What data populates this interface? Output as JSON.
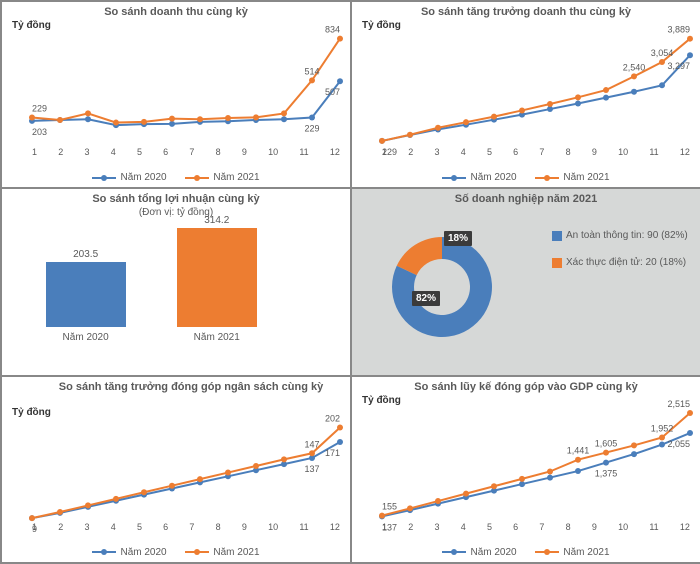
{
  "colors": {
    "blue": "#4a7ebb",
    "orange": "#ed7d31",
    "text": "#595959",
    "callout_bg": "#3b3b3b",
    "donut_bg": "#d6d8d7"
  },
  "charts": {
    "rev": {
      "title": "So sánh doanh thu cùng kỳ",
      "ylabel": "Tỷ đồng",
      "type": "line",
      "x": [
        1,
        2,
        3,
        4,
        5,
        6,
        7,
        8,
        9,
        10,
        11,
        12
      ],
      "series": [
        {
          "name": "Năm 2020",
          "color": "#4a7ebb",
          "y": [
            203,
            210,
            215,
            170,
            178,
            180,
            195,
            200,
            210,
            215,
            229,
            507
          ],
          "labels": {
            "0": "203",
            "10": "229",
            "11": "507"
          }
        },
        {
          "name": "Năm 2021",
          "color": "#ed7d31",
          "y": [
            229,
            210,
            260,
            190,
            195,
            220,
            215,
            225,
            230,
            260,
            514,
            834
          ],
          "labels": {
            "0": "229",
            "10": "514",
            "11": "834"
          }
        }
      ],
      "ylim": [
        0,
        900
      ]
    },
    "revgrowth": {
      "title": "So sánh tăng trưởng doanh thu cùng kỳ",
      "ylabel": "Tỷ đồng",
      "type": "line",
      "x": [
        1,
        2,
        3,
        4,
        5,
        6,
        7,
        8,
        9,
        10,
        11,
        12
      ],
      "series": [
        {
          "name": "Năm 2020",
          "color": "#4a7ebb",
          "y": [
            229,
            440,
            640,
            810,
            990,
            1170,
            1370,
            1570,
            1780,
            1990,
            2220,
            3297
          ],
          "labels": {
            "0": "229",
            "11": "3,297"
          }
        },
        {
          "name": "Năm 2021",
          "color": "#ed7d31",
          "y": [
            229,
            450,
            700,
            900,
            1100,
            1320,
            1550,
            1790,
            2050,
            2540,
            3054,
            3889
          ],
          "labels": {
            "9": "2,540",
            "10": "3,054",
            "11": "3,889"
          }
        }
      ],
      "ylim": [
        0,
        4200
      ]
    },
    "profit": {
      "title": "So sánh tổng lợi nhuận cùng kỳ",
      "subtitle": "(Đơn vị: tỷ đồng)",
      "type": "bar",
      "bars": [
        {
          "label": "Năm 2020",
          "value": 203.5,
          "value_label": "203.5",
          "color": "#4a7ebb"
        },
        {
          "label": "Năm 2021",
          "value": 314.2,
          "value_label": "314.2",
          "color": "#ed7d31"
        }
      ],
      "ymax": 320
    },
    "donut": {
      "title": "Số doanh nghiệp năm 2021",
      "type": "donut",
      "slices": [
        {
          "label": "An toàn thông tin: 90 (82%)",
          "pct": 82,
          "pct_label": "82%",
          "color": "#4a7ebb"
        },
        {
          "label": "Xác thực điện tử: 20 (18%)",
          "pct": 18,
          "pct_label": "18%",
          "color": "#ed7d31"
        }
      ]
    },
    "budget": {
      "title": "So sánh tăng trưởng đóng góp ngân sách cùng kỳ",
      "ylabel": "Tỷ đồng",
      "type": "line",
      "x": [
        1,
        2,
        3,
        4,
        5,
        6,
        7,
        8,
        9,
        10,
        11,
        12
      ],
      "series": [
        {
          "name": "Năm 2020",
          "color": "#4a7ebb",
          "y": [
            9,
            20,
            33,
            46,
            59,
            72,
            85,
            98,
            111,
            124,
            137,
            171
          ],
          "labels": {
            "0": "9",
            "10": "137",
            "11": "171"
          }
        },
        {
          "name": "Năm 2021",
          "color": "#ed7d31",
          "y": [
            9,
            22,
            36,
            50,
            64,
            78,
            92,
            106,
            120,
            134,
            147,
            202
          ],
          "labels": {
            "10": "147",
            "11": "202"
          }
        }
      ],
      "ylim": [
        0,
        220
      ]
    },
    "gdp": {
      "title": "So sánh lũy kế đóng góp vào GDP cùng kỳ",
      "ylabel": "Tỷ đồng",
      "type": "line",
      "x": [
        1,
        2,
        3,
        4,
        5,
        6,
        7,
        8,
        9,
        10,
        11,
        12
      ],
      "series": [
        {
          "name": "Năm 2020",
          "color": "#4a7ebb",
          "y": [
            137,
            280,
            430,
            580,
            730,
            880,
            1030,
            1180,
            1375,
            1570,
            1790,
            2055
          ],
          "labels": {
            "0": "137",
            "8": "1,375",
            "11": "2,055"
          }
        },
        {
          "name": "Năm 2021",
          "color": "#ed7d31",
          "y": [
            155,
            320,
            490,
            660,
            830,
            1000,
            1170,
            1441,
            1605,
            1770,
            1952,
            2515
          ],
          "labels": {
            "0": "155",
            "7": "1,441",
            "8": "1,605",
            "10": "1,952",
            "11": "2,515"
          }
        }
      ],
      "ylim": [
        0,
        2700
      ]
    }
  },
  "legend_labels": {
    "s0": "Năm 2020",
    "s1": "Năm 2021"
  }
}
